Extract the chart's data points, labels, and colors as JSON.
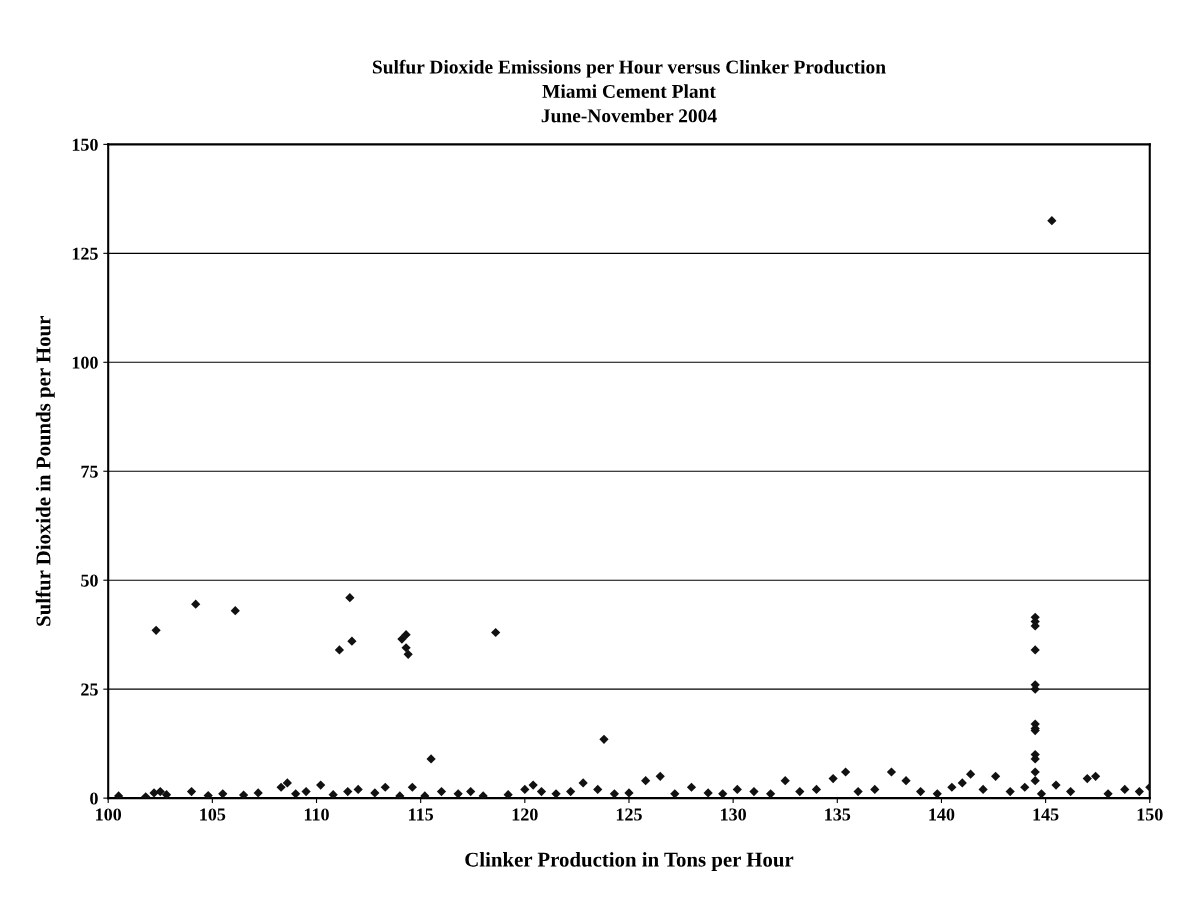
{
  "chart_data": {
    "type": "scatter",
    "title": "Sulfur Dioxide Emissions per Hour versus Clinker Production\nMiami Cement Plant\nJune-November 2004",
    "xlabel": "Clinker Production in Tons per Hour",
    "ylabel": "Sulfur Dioxide in Pounds per Hour",
    "x": [
      100.5,
      101.8,
      102.2,
      102.5,
      102.8,
      104.0,
      104.8,
      105.5,
      106.5,
      107.2,
      108.3,
      108.6,
      109.0,
      109.5,
      110.2,
      110.8,
      111.5,
      112.0,
      112.8,
      113.3,
      114.0,
      114.6,
      115.2,
      116.0,
      116.8,
      117.4,
      118.0,
      119.2,
      120.0,
      120.4,
      120.8,
      121.5,
      122.2,
      122.8,
      123.5,
      124.3,
      125.0,
      125.8,
      126.5,
      127.2,
      128.0,
      128.8,
      129.5,
      130.2,
      131.0,
      131.8,
      132.5,
      133.2,
      134.0,
      134.8,
      135.4,
      136.0,
      136.8,
      137.6,
      138.3,
      139.0,
      139.8,
      140.5,
      141.0,
      141.4,
      142.0,
      142.6,
      143.3,
      144.0,
      144.8,
      145.5,
      146.2,
      147.0,
      147.4,
      148.0,
      148.8,
      149.5,
      150.0,
      102.3,
      104.2,
      106.1,
      111.1,
      111.6,
      111.7,
      114.1,
      114.3,
      114.3,
      114.4,
      115.5,
      118.6,
      123.8,
      145.3,
      144.5,
      144.5,
      144.5,
      144.5,
      144.5,
      144.5,
      144.5,
      144.5,
      144.5,
      144.5,
      144.5,
      144.5,
      144.5
    ],
    "values": [
      0.5,
      0.3,
      1.2,
      1.5,
      0.8,
      1.5,
      0.6,
      1.0,
      0.7,
      1.2,
      2.5,
      3.5,
      1.0,
      1.5,
      3.0,
      0.8,
      1.5,
      2.0,
      1.2,
      2.5,
      0.5,
      2.5,
      0.5,
      1.5,
      1.0,
      1.5,
      0.5,
      0.8,
      2.0,
      3.0,
      1.5,
      1.0,
      1.5,
      3.5,
      2.0,
      1.0,
      1.2,
      4.0,
      5.0,
      1.0,
      2.5,
      1.2,
      1.0,
      2.0,
      1.5,
      1.0,
      4.0,
      1.5,
      2.0,
      4.5,
      6.0,
      1.5,
      2.0,
      6.0,
      4.0,
      1.5,
      1.0,
      2.5,
      3.5,
      5.5,
      2.0,
      5.0,
      1.5,
      2.5,
      1.0,
      3.0,
      1.5,
      4.5,
      5.0,
      1.0,
      2.0,
      1.5,
      2.5,
      38.5,
      44.5,
      43,
      34,
      46,
      36,
      36.5,
      37.5,
      34.5,
      33,
      9,
      38,
      13.5,
      132.5,
      41.5,
      40.5,
      39.5,
      34,
      26,
      25,
      17,
      16,
      15.5,
      10,
      9,
      6,
      4
    ],
    "color": "#111111",
    "marker": "diamond",
    "xlim": [
      100,
      150
    ],
    "xticks": [
      100,
      105,
      110,
      115,
      120,
      125,
      130,
      135,
      140,
      145,
      150
    ],
    "ylim": [
      0,
      150
    ],
    "yticks": [
      0,
      25,
      50,
      75,
      100,
      125,
      150
    ],
    "grid": "y"
  }
}
